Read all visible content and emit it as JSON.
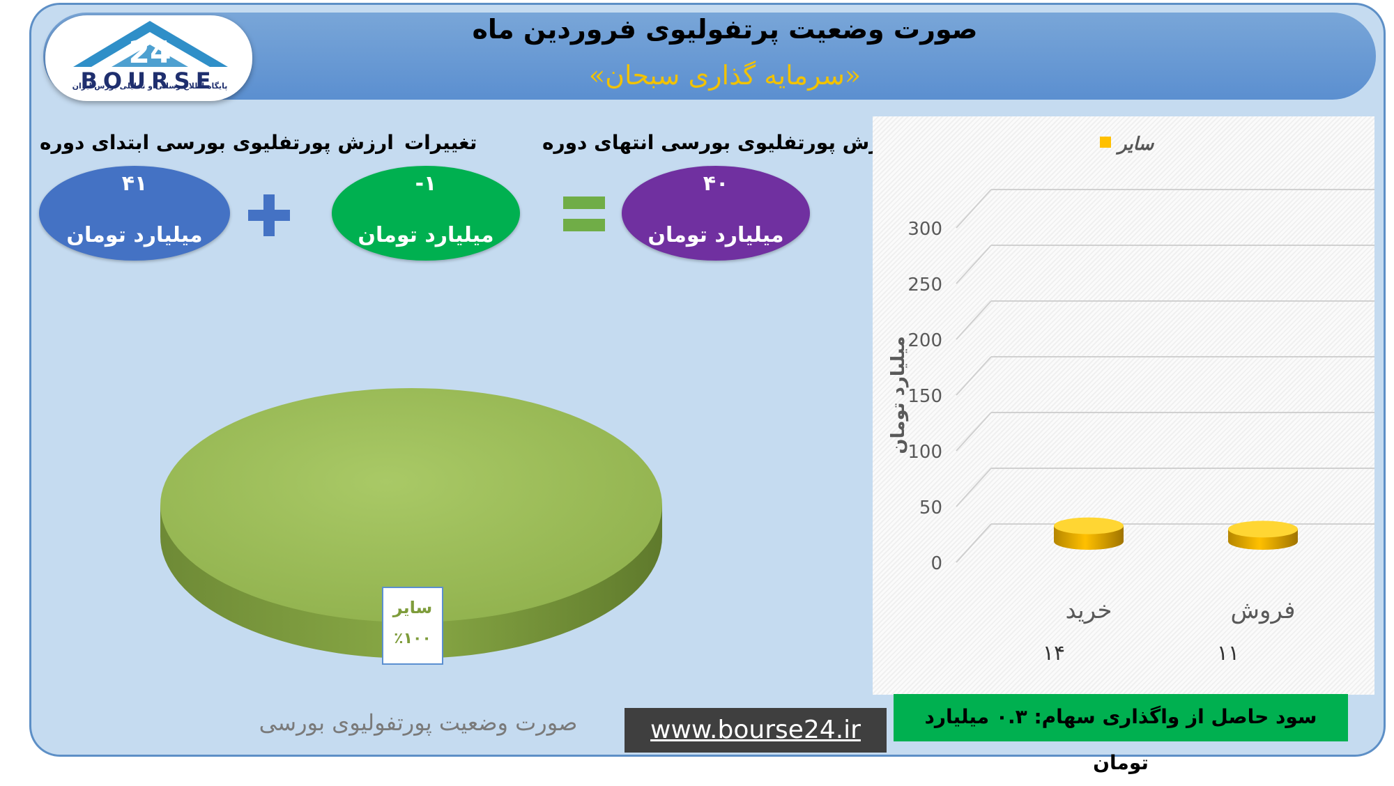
{
  "header": {
    "title": "صورت وضعیت پرتفولیوی فروردین ماه",
    "subtitle": "«سرمایه گذاری سبحان»"
  },
  "logo": {
    "text": "BOURSE",
    "mark": "24",
    "subtitle": "پایگاه اطلاع رسانی و تحلیلی بورس ایران"
  },
  "summary": {
    "end_label": "ارزش پورتفلیوی بورسی انتهای دوره",
    "end_value": "۴۰",
    "change_label": "تغییرات",
    "change_value": "-۱",
    "start_label": "ارزش پورتفلیوی بورسی ابتدای دوره",
    "start_value": "۴۱",
    "unit": "میلیارد تومان",
    "colors": {
      "end": "#7030a0",
      "change": "#00b050",
      "start": "#4472c4",
      "plus": "#4472c4",
      "equals": "#70ad47"
    }
  },
  "pie": {
    "caption": "صورت وضعیت پورتفولیوی بورسی",
    "label_name": "سایر",
    "label_value": "٪۱۰۰",
    "color": "#9bbb59"
  },
  "chart_data": [
    {
      "type": "pie",
      "categories": [
        "سایر"
      ],
      "values": [
        100
      ],
      "title": "صورت وضعیت پورتفولیوی بورسی"
    },
    {
      "type": "bar",
      "categories": [
        "خرید",
        "فروش"
      ],
      "series": [
        {
          "name": "سایر",
          "values": [
            14,
            11
          ],
          "color": "#ffc000"
        }
      ],
      "value_labels": [
        "۱۴",
        "۱۱"
      ],
      "ylabel": "میلیارد تومان",
      "yticks": [
        "0",
        "50",
        "100",
        "150",
        "200",
        "250",
        "300"
      ],
      "ylim": [
        0,
        300
      ],
      "grid": true,
      "legend": "top"
    }
  ],
  "banner": {
    "text": "سود حاصل از واگذاری سهام: ۰.۳ میلیارد تومان"
  },
  "footer": {
    "url": "www.bourse24.ir"
  }
}
